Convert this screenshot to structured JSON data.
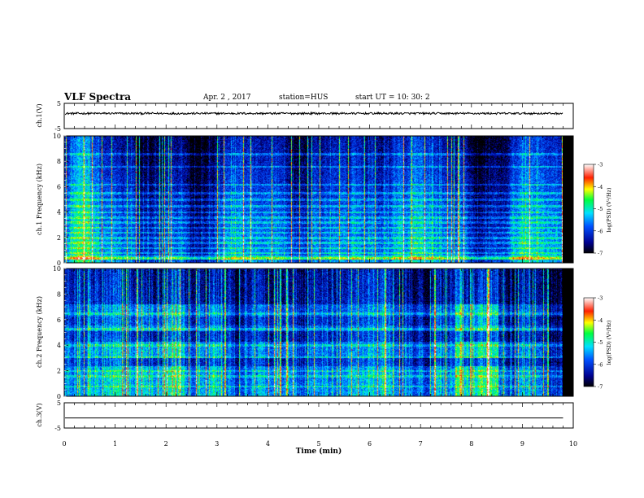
{
  "header": {
    "title": "VLF Spectra",
    "date": "Apr. 2 , 2017",
    "station": "station=HUS",
    "start_time": "start UT = 10: 30: 2"
  },
  "chart_data": [
    {
      "type": "line",
      "name": "ch1-waveform",
      "ylabel": "ch.1(V)",
      "ylim": [
        -5,
        5
      ],
      "yticks": [
        5,
        -5
      ],
      "xlim": [
        0,
        10
      ],
      "approx_level": 1.0,
      "approx_noise_amplitude": 0.4,
      "data_extent_min": 9.8
    },
    {
      "type": "heatmap",
      "name": "ch1-spectrogram",
      "ylabel": "ch.1 Frequency (kHz)",
      "ylim": [
        0,
        10
      ],
      "yticks": [
        0,
        2,
        4,
        6,
        8,
        10
      ],
      "xlim": [
        0,
        10
      ],
      "data_extent_min": 9.8,
      "colorbar": {
        "label": "log(PSD) (V²/Hz)",
        "range": [
          -7,
          -3
        ],
        "ticks": [
          -3,
          -4,
          -5,
          -6,
          -7
        ]
      },
      "horizontal_bands_khz": [
        0.35,
        0.5,
        0.8,
        1.2,
        1.6,
        2.0,
        2.4,
        2.8,
        3.2,
        3.6,
        4.0,
        4.5,
        5.0,
        5.5,
        6.2,
        7.6,
        8.6
      ],
      "bright_band_khz": 0.4
    },
    {
      "type": "heatmap",
      "name": "ch2-spectrogram",
      "ylabel": "ch.2 Frequency (kHz)",
      "ylim": [
        0,
        10
      ],
      "yticks": [
        0,
        2,
        4,
        6,
        8,
        10
      ],
      "xlim": [
        0,
        10
      ],
      "data_extent_min": 9.8,
      "colorbar": {
        "label": "log(PSD) (V²/Hz)",
        "range": [
          -7,
          -3
        ],
        "ticks": [
          -3,
          -4,
          -5,
          -6,
          -7
        ]
      },
      "horizontal_bands_khz": [
        0.8,
        1.6,
        2.0,
        3.1,
        4.0,
        5.3,
        6.5
      ]
    },
    {
      "type": "line",
      "name": "ch3-waveform",
      "ylabel": "ch.3(V)",
      "ylim": [
        -5,
        5
      ],
      "yticks": [
        5,
        -5
      ],
      "xlim": [
        0,
        10
      ],
      "approx_level": -1.0,
      "data_extent_min": 9.8
    }
  ],
  "xaxis": {
    "label": "Time (min)",
    "ticks": [
      0,
      1,
      2,
      3,
      4,
      5,
      6,
      7,
      8,
      9,
      10
    ],
    "range": [
      0,
      10
    ]
  }
}
